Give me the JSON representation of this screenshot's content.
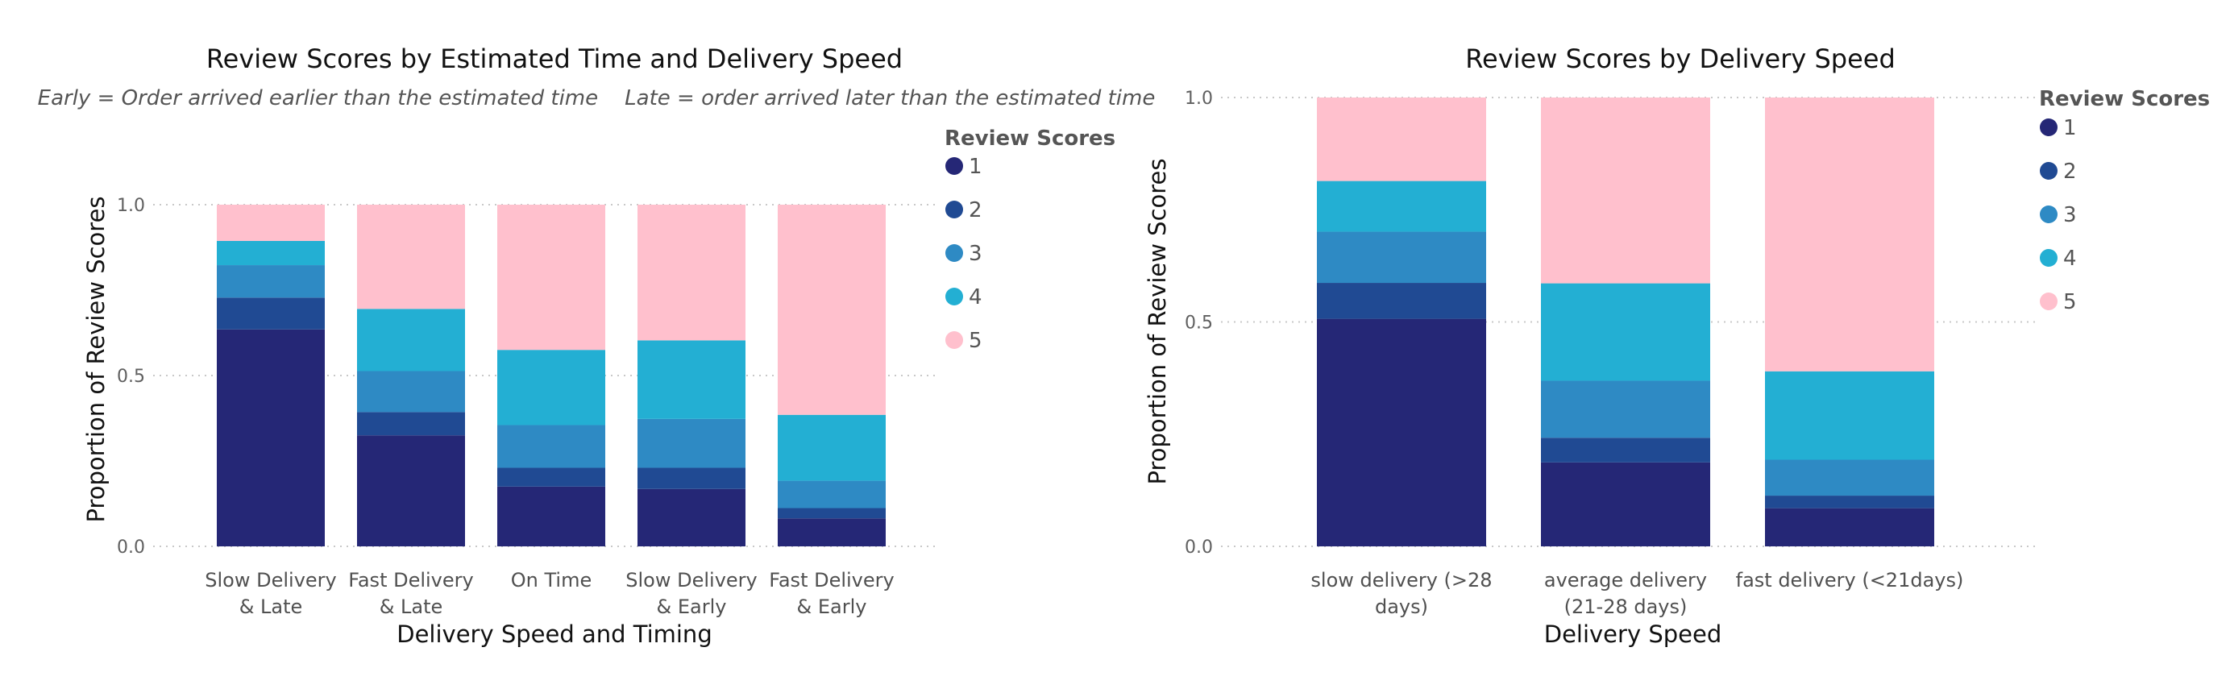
{
  "chart_data": [
    {
      "type": "bar",
      "stacked": true,
      "title": "Review Scores by Estimated Time and Delivery Speed",
      "subtitle": "Early = Order arrived earlier than the estimated time    Late = order arrived later than the estimated time",
      "xlabel": "Delivery Speed and Timing",
      "ylabel": "Proportion of Review Scores",
      "ylim": [
        0,
        1
      ],
      "yticks": [
        "0.0",
        "0.5",
        "1.0"
      ],
      "grid": true,
      "legend_title": "Review Scores",
      "legend_position": "right",
      "categories": [
        [
          "Slow Delivery",
          "& Late"
        ],
        [
          "Fast Delivery",
          "& Late"
        ],
        [
          "On Time"
        ],
        [
          "Slow Delivery",
          "& Early"
        ],
        [
          "Fast Delivery",
          "& Early"
        ]
      ],
      "series": [
        {
          "name": "1",
          "color": "#252776",
          "values": [
            0.635,
            0.325,
            0.175,
            0.168,
            0.082
          ]
        },
        {
          "name": "2",
          "color": "#204A93",
          "values": [
            0.093,
            0.068,
            0.055,
            0.062,
            0.03
          ]
        },
        {
          "name": "3",
          "color": "#2E8AC4",
          "values": [
            0.095,
            0.12,
            0.125,
            0.143,
            0.08
          ]
        },
        {
          "name": "4",
          "color": "#23AFD3",
          "values": [
            0.071,
            0.182,
            0.22,
            0.23,
            0.193
          ]
        },
        {
          "name": "5",
          "color": "#FFC0CD",
          "values": [
            0.106,
            0.305,
            0.425,
            0.397,
            0.615
          ]
        }
      ]
    },
    {
      "type": "bar",
      "stacked": true,
      "title": "Review Scores by Delivery Speed",
      "xlabel": "Delivery Speed",
      "ylabel": "Proportion of Review Scores",
      "ylim": [
        0,
        1
      ],
      "yticks": [
        "0.0",
        "0.5",
        "1.0"
      ],
      "grid": true,
      "legend_title": "Review Scores",
      "legend_position": "right",
      "categories": [
        [
          "slow delivery (>28",
          "days)"
        ],
        [
          "average delivery",
          "(21-28 days)"
        ],
        [
          "fast delivery (<21days)"
        ]
      ],
      "series": [
        {
          "name": "1",
          "color": "#252776",
          "values": [
            0.507,
            0.187,
            0.085
          ]
        },
        {
          "name": "2",
          "color": "#204A93",
          "values": [
            0.08,
            0.055,
            0.028
          ]
        },
        {
          "name": "3",
          "color": "#2E8AC4",
          "values": [
            0.114,
            0.127,
            0.08
          ]
        },
        {
          "name": "4",
          "color": "#23AFD3",
          "values": [
            0.113,
            0.217,
            0.197
          ]
        },
        {
          "name": "5",
          "color": "#FFC0CD",
          "values": [
            0.186,
            0.414,
            0.61
          ]
        }
      ]
    }
  ]
}
